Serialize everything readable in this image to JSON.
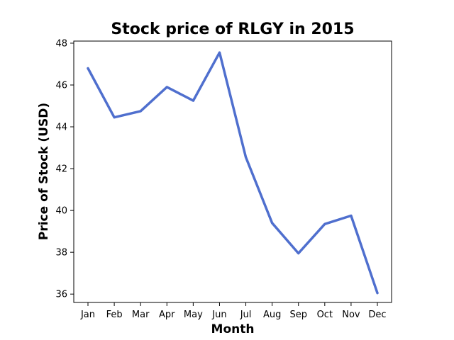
{
  "chart_data": {
    "type": "line",
    "title": "Stock price of RLGY in 2015",
    "xlabel": "Month",
    "ylabel": "Price of Stock (USD)",
    "categories": [
      "Jan",
      "Feb",
      "Mar",
      "Apr",
      "May",
      "Jun",
      "Jul",
      "Aug",
      "Sep",
      "Oct",
      "Nov",
      "Dec"
    ],
    "series": [
      {
        "values": [
          46.8,
          44.45,
          44.75,
          45.9,
          45.25,
          47.55,
          42.55,
          39.4,
          37.95,
          39.35,
          39.75,
          36.05
        ],
        "color": "#4f6fce"
      }
    ],
    "ylim": [
      35.6,
      48.1
    ],
    "yticks": [
      36,
      38,
      40,
      42,
      44,
      46,
      48
    ],
    "grid": false,
    "legend": "none"
  }
}
